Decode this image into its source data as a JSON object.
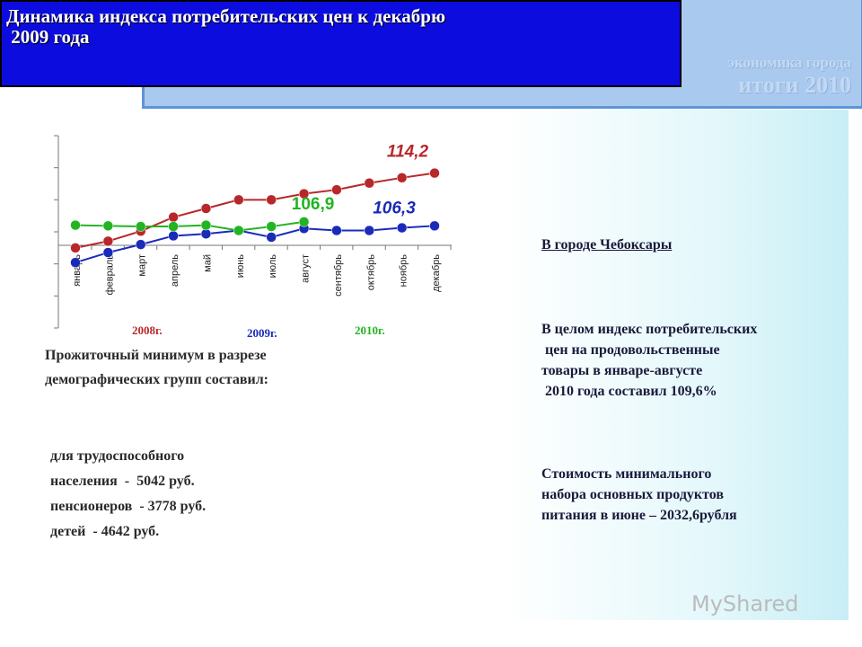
{
  "chart_data": {
    "type": "line",
    "categories": [
      "январь",
      "февраль",
      "март",
      "апрель",
      "май",
      "июнь",
      "июль",
      "август",
      "сентябрь",
      "октябрь",
      "ноябрь",
      "декабрь"
    ],
    "series": [
      {
        "name": "2008г.",
        "color": "#b8282a",
        "values": [
          103.0,
          104.0,
          105.5,
          107.6,
          108.9,
          110.2,
          110.2,
          111.1,
          111.7,
          112.7,
          113.5,
          114.2
        ],
        "value_labels": [
          null,
          null,
          null,
          null,
          null,
          null,
          null,
          null,
          null,
          null,
          null,
          "114,2"
        ]
      },
      {
        "name": "2009г.",
        "color": "#1a2bb8",
        "values": [
          100.8,
          102.3,
          103.5,
          104.8,
          105.1,
          105.6,
          104.6,
          105.9,
          105.6,
          105.6,
          106.0,
          106.3
        ],
        "value_labels": [
          null,
          null,
          null,
          null,
          null,
          null,
          null,
          null,
          null,
          null,
          null,
          "106,3"
        ]
      },
      {
        "name": "2010г.",
        "color": "#22b422",
        "values": [
          106.4,
          106.3,
          106.2,
          106.2,
          106.4,
          105.6,
          106.2,
          106.9,
          null,
          null,
          null,
          null
        ],
        "value_labels": [
          null,
          null,
          null,
          null,
          null,
          null,
          null,
          "106,9",
          null,
          null,
          null,
          null
        ]
      }
    ],
    "ylim": [
      91,
      119.8
    ],
    "yticks": [
      91,
      95.8,
      100.6,
      105.4,
      110.2,
      115,
      119.8
    ]
  },
  "slide": {
    "title": [
      "Динамика индекса потребительских цен к декабрю",
      " 2009 года"
    ],
    "watermark": [
      "экономика города",
      "итоги 2010"
    ],
    "left_heading": [
      "Прожиточный минимум в разрезе",
      "демографических групп составил:"
    ],
    "left_items": [
      "для трудоспособного",
      "населения  -  5042 руб.",
      "пенсионеров  - 3778 руб.",
      "детей  - 4642 руб."
    ],
    "right_heading": "В городе Чебоксары",
    "right_para1": [
      "В целом индекс потребительских",
      " цен на продовольственные",
      "товары в январе-августе",
      " 2010 года составил 109,6%"
    ],
    "right_para2": [
      "Стоимость минимального",
      "набора основных продуктов",
      "питания в июне – 2032,6рубля"
    ],
    "brand": "MyShared"
  }
}
